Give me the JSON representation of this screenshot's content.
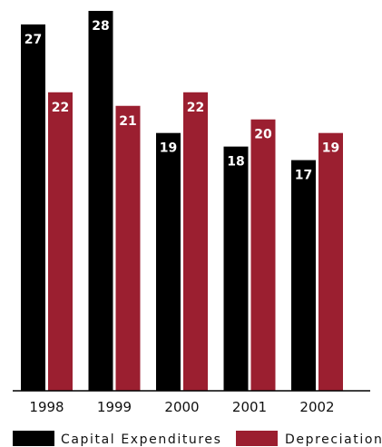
{
  "chart_data": {
    "type": "bar",
    "title": "",
    "xlabel": "",
    "ylabel": "",
    "categories": [
      "1998",
      "1999",
      "2000",
      "2001",
      "2002"
    ],
    "series": [
      {
        "name": "Capital Expenditures",
        "values": [
          27,
          28,
          19,
          18,
          17
        ],
        "color": "#000000"
      },
      {
        "name": "Depreciation",
        "values": [
          22,
          21,
          22,
          20,
          19
        ],
        "color": "#9b1f30"
      }
    ],
    "ylim": [
      0,
      28
    ],
    "grid": false,
    "legend_position": "bottom"
  }
}
